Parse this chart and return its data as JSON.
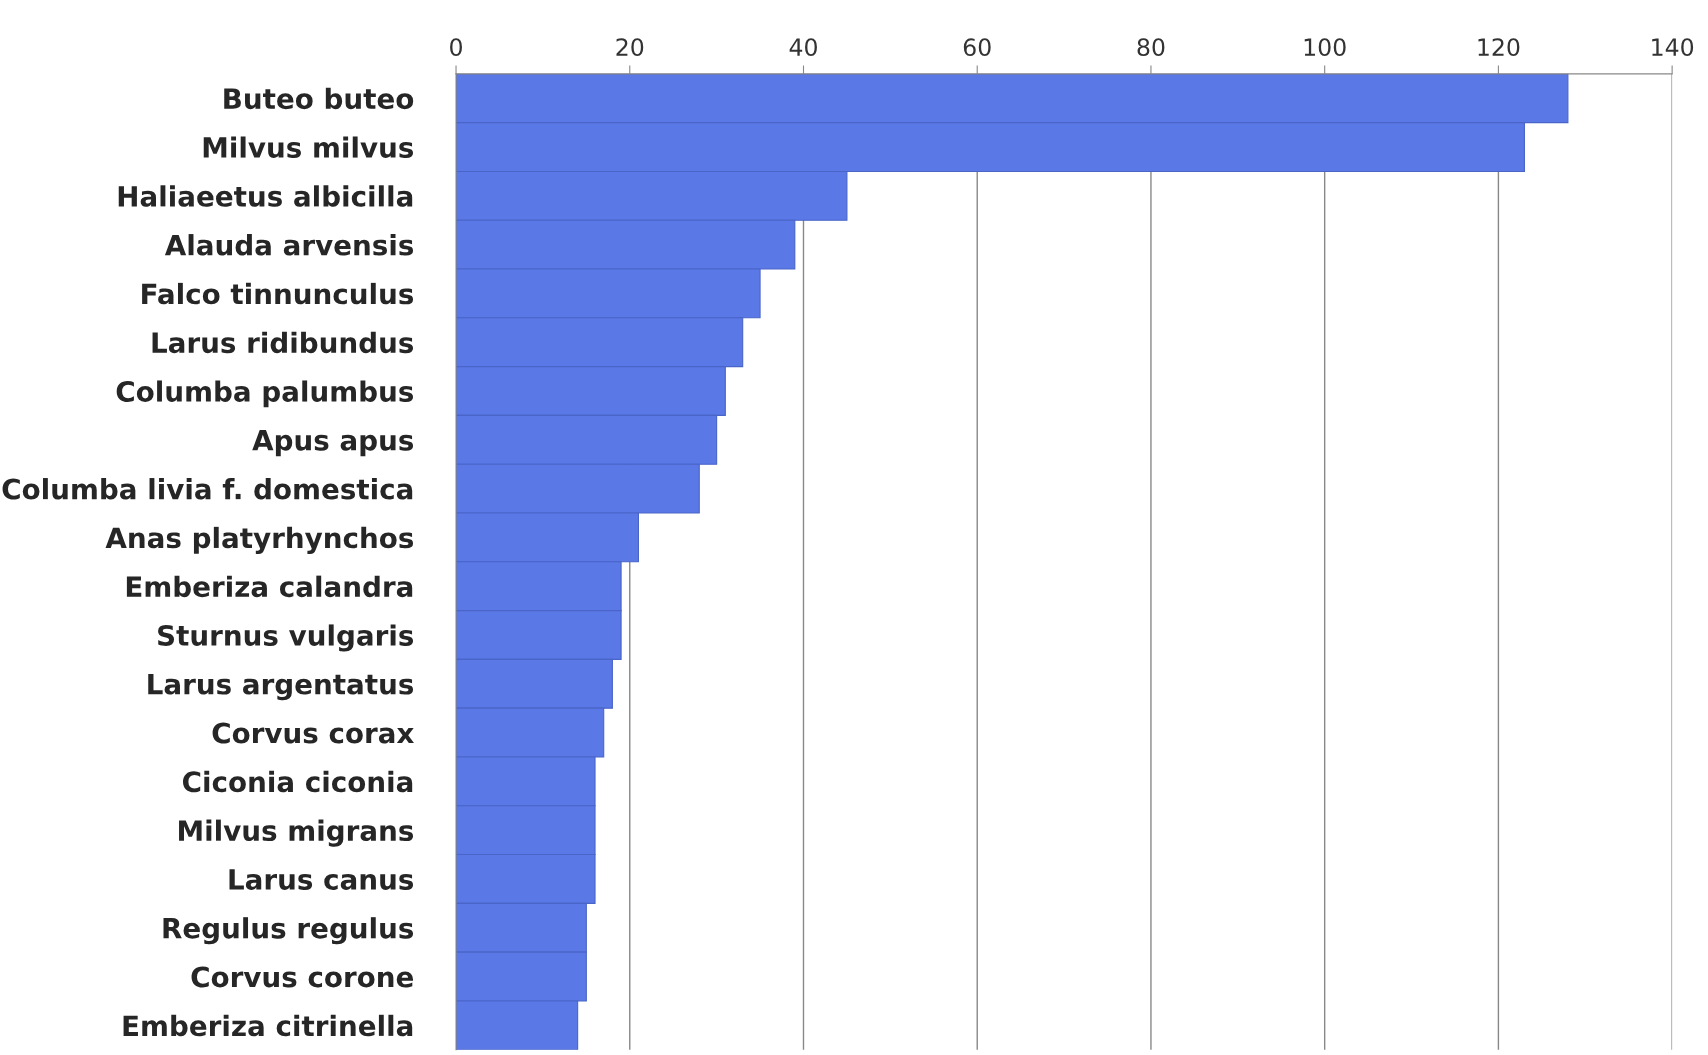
{
  "chart_data": {
    "type": "bar",
    "orientation": "horizontal",
    "categories": [
      "Buteo buteo",
      "Milvus milvus",
      "Haliaeetus albicilla",
      "Alauda arvensis",
      "Falco tinnunculus",
      "Larus ridibundus",
      "Columba palumbus",
      "Apus apus",
      "Columba livia f. domestica",
      "Anas platyrhynchos",
      "Emberiza calandra",
      "Sturnus vulgaris",
      "Larus argentatus",
      "Corvus corax",
      "Ciconia ciconia",
      "Milvus migrans",
      "Larus canus",
      "Regulus regulus",
      "Corvus corone",
      "Emberiza citrinella"
    ],
    "values": [
      128,
      123,
      45,
      39,
      35,
      33,
      31,
      30,
      28,
      21,
      19,
      19,
      18,
      17,
      16,
      16,
      16,
      15,
      15,
      14
    ],
    "color": "#5a78e6",
    "xlim": [
      0,
      140
    ],
    "xticks": [
      0,
      20,
      40,
      60,
      80,
      100,
      120,
      140
    ],
    "grid": "x"
  }
}
